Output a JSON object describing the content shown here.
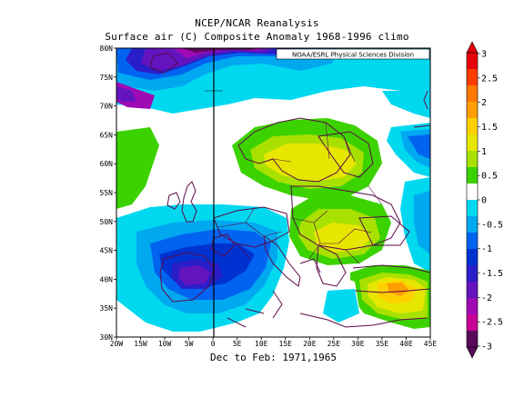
{
  "header": {
    "line1": "NCEP/NCAR Reanalysis",
    "line2": "Surface air (C) Composite Anomaly 1968-1996 climo"
  },
  "footer": {
    "period": "Dec to Feb: 1971,1965"
  },
  "credit": "NOAA/ESRL Physical Sciences Division",
  "map": {
    "lon_labels": [
      "20W",
      "15W",
      "10W",
      "5W",
      "0",
      "5E",
      "10E",
      "15E",
      "20E",
      "25E",
      "30E",
      "35E",
      "40E",
      "45E"
    ],
    "lat_labels": [
      "80N",
      "75N",
      "70N",
      "65N",
      "60N",
      "55N",
      "50N",
      "45N",
      "40N",
      "35N",
      "30N"
    ],
    "lon_range": [
      -20,
      45
    ],
    "lat_range": [
      30,
      80
    ]
  },
  "colorbar": {
    "labels": [
      "3",
      "2.5",
      "2",
      "1.5",
      "1",
      "0.5",
      "0",
      "-0.5",
      "-1",
      "-1.5",
      "-2",
      "-2.5",
      "-3"
    ],
    "colors": [
      "#e8000a",
      "#ff3c00",
      "#ff7800",
      "#ff9e00",
      "#ffd000",
      "#e6e600",
      "#a8e100",
      "#3cd200",
      "#ffffff",
      "#00d8f0",
      "#00a8f0",
      "#0064f0",
      "#0032d2",
      "#2a1ec8",
      "#6414be",
      "#a00ab4",
      "#c80096",
      "#5a0a5a"
    ]
  }
}
